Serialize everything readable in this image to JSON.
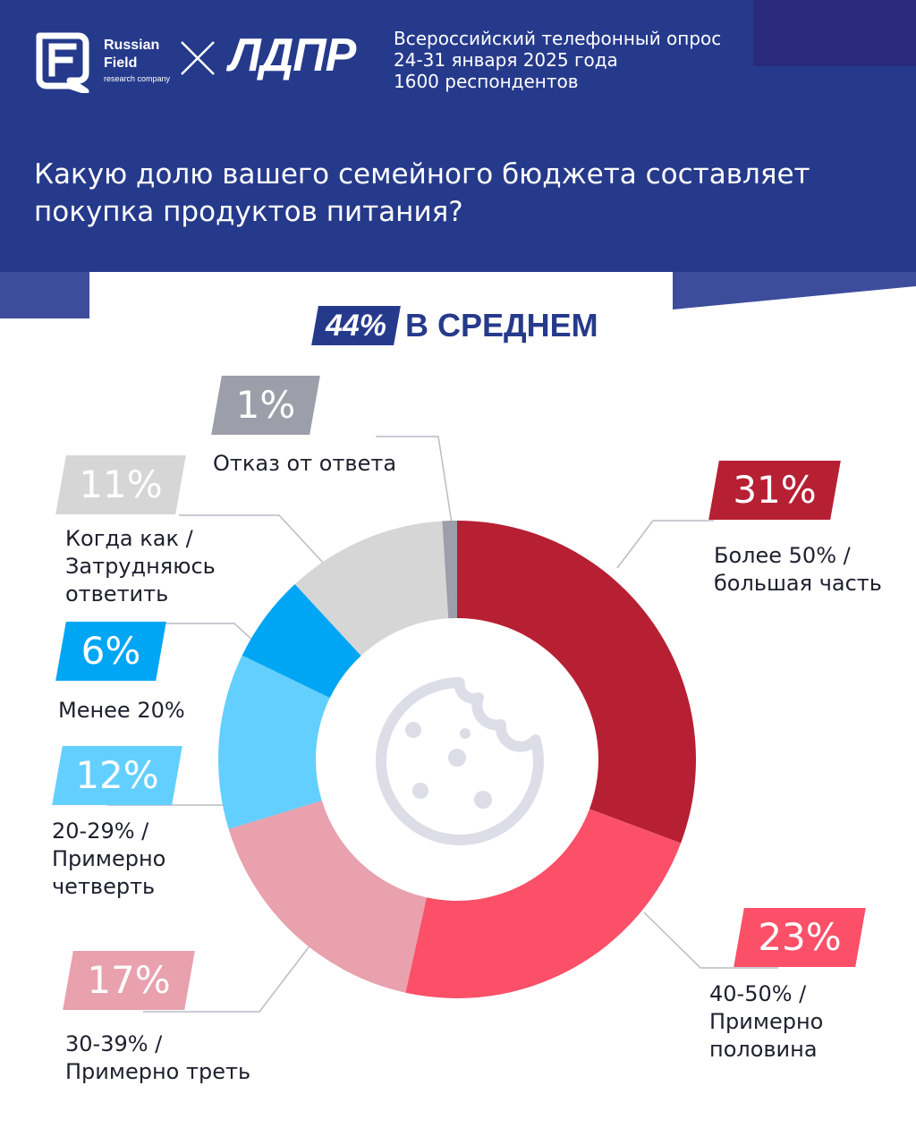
{
  "brand": {
    "rf_name_line1": "Russian",
    "rf_name_line2": "Field",
    "rf_subtitle": "research company",
    "partner": "ЛДПР"
  },
  "survey": {
    "line1": "Всероссийский телефонный опрос",
    "line2": "24-31 января 2025 года",
    "line3": "1600 респондентов"
  },
  "question": {
    "line1": "Какую долю вашего семейного бюджета составляет",
    "line2": "покупка продуктов питания?"
  },
  "average": {
    "value": "44%",
    "label": "В СРЕДНЕМ"
  },
  "colors": {
    "header": "#263a8c",
    "more_50": "#b71f33",
    "half": "#fb5068",
    "third": "#e8a1ad",
    "quarter": "#63cfff",
    "less_20": "#00a6f4",
    "sometimes": "#d6d6d6",
    "refusal": "#9c9ea9",
    "center_icon": "#dcdde7"
  },
  "center_icon": "cookie-icon",
  "chart_data": {
    "type": "pie",
    "title": "Какую долю вашего семейного бюджета составляет покупка продуктов питания?",
    "slices": [
      {
        "label": "Более 50% / большая часть",
        "value": 31,
        "display": "31%",
        "color": "#b71f33",
        "lines": [
          "Более 50% /",
          "большая часть"
        ]
      },
      {
        "label": "40-50% / Примерно половина",
        "value": 23,
        "display": "23%",
        "color": "#fb5068",
        "lines": [
          "40-50% /",
          "Примерно",
          "половина"
        ]
      },
      {
        "label": "30-39% / Примерно треть",
        "value": 17,
        "display": "17%",
        "color": "#e8a1ad",
        "lines": [
          "30-39% /",
          "Примерно треть"
        ]
      },
      {
        "label": "20-29% / Примерно четверть",
        "value": 12,
        "display": "12%",
        "color": "#63cfff",
        "lines": [
          "20-29% /",
          "Примерно",
          "четверть"
        ]
      },
      {
        "label": "Менее 20%",
        "value": 6,
        "display": "6%",
        "color": "#00a6f4",
        "lines": [
          "Менее 20%"
        ]
      },
      {
        "label": "Когда как / Затрудняюсь ответить",
        "value": 11,
        "display": "11%",
        "color": "#d6d6d6",
        "lines": [
          "Когда как /",
          "Затрудняюсь",
          "ответить"
        ]
      },
      {
        "label": "Отказ от ответа",
        "value": 1,
        "display": "1%",
        "color": "#9c9ea9",
        "lines": [
          "Отказ от ответа"
        ]
      }
    ]
  }
}
